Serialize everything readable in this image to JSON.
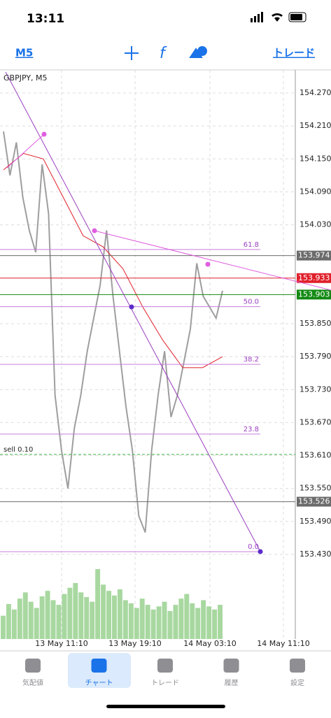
{
  "status_bar": {
    "time": "13:11"
  },
  "toolbar": {
    "timeframe": "M5",
    "trade": "トレード"
  },
  "chart": {
    "symbol": "GBPJPY, M5",
    "ylim": [
      153.276,
      154.312
    ],
    "yticks": [
      {
        "value": 154.27,
        "label": "154.270"
      },
      {
        "value": 154.21,
        "label": "154.210"
      },
      {
        "value": 154.15,
        "label": "154.150"
      },
      {
        "value": 154.09,
        "label": "154.090"
      },
      {
        "value": 154.03,
        "label": "154.030"
      },
      {
        "value": 153.85,
        "label": "153.850"
      },
      {
        "value": 153.79,
        "label": "153.790"
      },
      {
        "value": 153.73,
        "label": "153.730"
      },
      {
        "value": 153.67,
        "label": "153.670"
      },
      {
        "value": 153.61,
        "label": "153.610"
      },
      {
        "value": 153.55,
        "label": "153.550"
      },
      {
        "value": 153.49,
        "label": "153.490"
      },
      {
        "value": 153.43,
        "label": "153.430"
      }
    ],
    "levels": [
      {
        "value": 153.974,
        "color": "#6b6b6b"
      },
      {
        "value": 153.933,
        "color": "#e0202a"
      },
      {
        "value": 153.903,
        "color": "#138a13"
      },
      {
        "value": 153.526,
        "color": "#6b6b6b"
      }
    ],
    "fib": [
      {
        "label": "61.8",
        "price": 153.985
      },
      {
        "label": "50.0",
        "price": 153.881
      },
      {
        "label": "38.2",
        "price": 153.776
      },
      {
        "label": "23.8",
        "price": 153.649
      },
      {
        "label": "0.0",
        "price": 153.435
      }
    ],
    "order": {
      "label": "sell 0.10",
      "price": 153.612
    },
    "x_labels": [
      "13 May 11:10",
      "13 May 19:10",
      "14 May 03:10",
      "14 May 11:10"
    ],
    "prices": [
      154.2,
      154.12,
      154.18,
      154.08,
      154.02,
      153.98,
      154.14,
      154.05,
      153.72,
      153.62,
      153.55,
      153.66,
      153.72,
      153.8,
      153.86,
      153.92,
      154.02,
      153.9,
      153.8,
      153.7,
      153.62,
      153.5,
      153.47,
      153.62,
      153.72,
      153.8,
      153.68,
      153.72,
      153.78,
      153.84,
      153.96,
      153.9,
      153.88,
      153.86,
      153.91
    ],
    "ma": [
      154.13,
      154.16,
      154.15,
      154.08,
      154.01,
      153.99,
      153.95,
      153.88,
      153.82,
      153.77,
      153.77,
      153.79
    ],
    "volume": [
      30,
      45,
      38,
      52,
      60,
      48,
      40,
      55,
      62,
      50,
      44,
      58,
      66,
      72,
      60,
      54,
      48,
      90,
      70,
      62,
      56,
      64,
      50,
      46,
      40,
      52,
      44,
      38,
      42,
      48,
      36,
      44,
      52,
      58,
      46,
      40,
      50,
      42,
      38,
      44
    ]
  },
  "tab_bar": {
    "tabs": [
      "気配値",
      "チャート",
      "トレード",
      "履歴",
      "設定"
    ]
  }
}
